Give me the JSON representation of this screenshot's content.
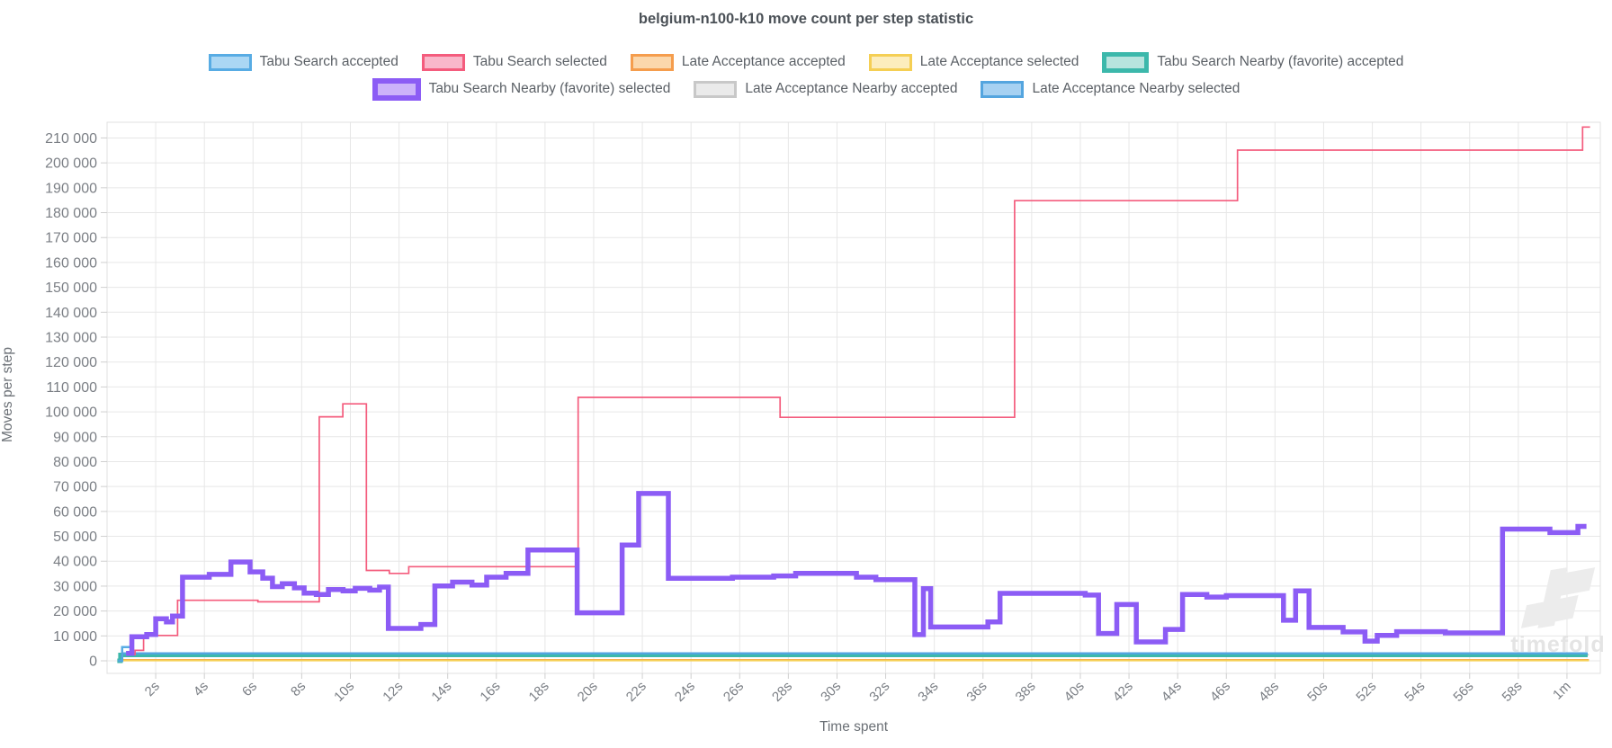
{
  "title": "belgium-n100-k10 move count per step statistic",
  "watermark_text": "timefold",
  "chart_data": {
    "type": "line",
    "stepped": true,
    "title": "belgium-n100-k10 move count per step statistic",
    "xlabel": "Time spent",
    "ylabel": "Moves per step",
    "grid": true,
    "legend_position": "top",
    "xlim": [
      0,
      61.37
    ],
    "ylim": [
      -5050,
      216300
    ],
    "x_ticks": [
      {
        "t": 2,
        "label": "2s"
      },
      {
        "t": 4,
        "label": "4s"
      },
      {
        "t": 6,
        "label": "6s"
      },
      {
        "t": 8,
        "label": "8s"
      },
      {
        "t": 10,
        "label": "10s"
      },
      {
        "t": 12,
        "label": "12s"
      },
      {
        "t": 14,
        "label": "14s"
      },
      {
        "t": 16,
        "label": "16s"
      },
      {
        "t": 18,
        "label": "18s"
      },
      {
        "t": 20,
        "label": "20s"
      },
      {
        "t": 22,
        "label": "22s"
      },
      {
        "t": 24,
        "label": "24s"
      },
      {
        "t": 26,
        "label": "26s"
      },
      {
        "t": 28,
        "label": "28s"
      },
      {
        "t": 30,
        "label": "30s"
      },
      {
        "t": 32,
        "label": "32s"
      },
      {
        "t": 34,
        "label": "34s"
      },
      {
        "t": 36,
        "label": "36s"
      },
      {
        "t": 38,
        "label": "38s"
      },
      {
        "t": 40,
        "label": "40s"
      },
      {
        "t": 42,
        "label": "42s"
      },
      {
        "t": 44,
        "label": "44s"
      },
      {
        "t": 46,
        "label": "46s"
      },
      {
        "t": 48,
        "label": "48s"
      },
      {
        "t": 50,
        "label": "50s"
      },
      {
        "t": 52,
        "label": "52s"
      },
      {
        "t": 54,
        "label": "54s"
      },
      {
        "t": 56,
        "label": "56s"
      },
      {
        "t": 58,
        "label": "58s"
      },
      {
        "t": 60,
        "label": "1m"
      }
    ],
    "y_ticks": [
      {
        "v": 0,
        "label": "0"
      },
      {
        "v": 10000,
        "label": "10 000"
      },
      {
        "v": 20000,
        "label": "20 000"
      },
      {
        "v": 30000,
        "label": "30 000"
      },
      {
        "v": 40000,
        "label": "40 000"
      },
      {
        "v": 50000,
        "label": "50 000"
      },
      {
        "v": 60000,
        "label": "60 000"
      },
      {
        "v": 70000,
        "label": "70 000"
      },
      {
        "v": 80000,
        "label": "80 000"
      },
      {
        "v": 90000,
        "label": "90 000"
      },
      {
        "v": 100000,
        "label": "100 000"
      },
      {
        "v": 110000,
        "label": "110 000"
      },
      {
        "v": 120000,
        "label": "120 000"
      },
      {
        "v": 130000,
        "label": "130 000"
      },
      {
        "v": 140000,
        "label": "140 000"
      },
      {
        "v": 150000,
        "label": "150 000"
      },
      {
        "v": 160000,
        "label": "160 000"
      },
      {
        "v": 170000,
        "label": "170 000"
      },
      {
        "v": 180000,
        "label": "180 000"
      },
      {
        "v": 190000,
        "label": "190 000"
      },
      {
        "v": 200000,
        "label": "200 000"
      },
      {
        "v": 210000,
        "label": "210 000"
      }
    ],
    "legend_rows": [
      [
        0,
        1,
        2,
        3,
        4
      ],
      [
        5,
        6,
        7
      ]
    ],
    "draw_order": [
      2,
      3,
      6,
      0,
      4,
      7,
      1,
      5
    ],
    "series": [
      {
        "name": "Tabu Search accepted",
        "color": "#58ace4",
        "fill": "#abd7f4",
        "lw": 2.5,
        "t_end": 60.85,
        "points": [
          [
            0.45,
            0
          ],
          [
            0.62,
            5500
          ],
          [
            1.05,
            2600
          ]
        ]
      },
      {
        "name": "Tabu Search selected",
        "color": "#f45c7d",
        "fill": "#f9b7ca",
        "lw": 1.7,
        "t_end": 60.95,
        "points": [
          [
            0.84,
            2500
          ],
          [
            1.15,
            4200
          ],
          [
            1.5,
            10200
          ],
          [
            2.9,
            24300
          ],
          [
            6.2,
            23700
          ],
          [
            8.72,
            98000
          ],
          [
            9.69,
            103200
          ],
          [
            10.66,
            36300
          ],
          [
            11.6,
            35100
          ],
          [
            12.4,
            37800
          ],
          [
            19.36,
            105800
          ],
          [
            27.66,
            97800
          ],
          [
            37.3,
            184800
          ],
          [
            46.46,
            205100
          ],
          [
            60.64,
            214400
          ]
        ]
      },
      {
        "name": "Late Acceptance accepted",
        "color": "#f59d4d",
        "fill": "#fbd7ab",
        "lw": 2,
        "t_end": 60.9,
        "points": [
          [
            0.45,
            0
          ],
          [
            0.6,
            350
          ]
        ]
      },
      {
        "name": "Late Acceptance selected",
        "color": "#f5cf54",
        "fill": "#fcedbd",
        "lw": 2,
        "t_end": 60.9,
        "points": [
          [
            0.45,
            0
          ],
          [
            0.6,
            150
          ]
        ]
      },
      {
        "name": "Tabu Search Nearby (favorite) accepted",
        "color": "#3cb8ab",
        "fill": "#b7e4de",
        "lw": 5,
        "t_end": 60.85,
        "points": [
          [
            0.42,
            0
          ],
          [
            0.55,
            2350
          ]
        ]
      },
      {
        "name": "Tabu Search Nearby (favorite) selected",
        "color": "#8c5cf5",
        "fill": "#ccb2fa",
        "lw": 5.5,
        "t_end": 60.8,
        "points": [
          [
            0.78,
            3000
          ],
          [
            1.02,
            9700
          ],
          [
            1.63,
            10600
          ],
          [
            2.0,
            16900
          ],
          [
            2.44,
            15600
          ],
          [
            2.69,
            18000
          ],
          [
            3.1,
            33600
          ],
          [
            4.2,
            34700
          ],
          [
            5.09,
            39700
          ],
          [
            5.88,
            35700
          ],
          [
            6.4,
            33200
          ],
          [
            6.8,
            29800
          ],
          [
            7.2,
            31000
          ],
          [
            7.7,
            29300
          ],
          [
            8.1,
            27200
          ],
          [
            8.6,
            26600
          ],
          [
            9.1,
            28600
          ],
          [
            9.7,
            28100
          ],
          [
            10.2,
            29100
          ],
          [
            10.8,
            28400
          ],
          [
            11.2,
            29600
          ],
          [
            11.56,
            13000
          ],
          [
            12.9,
            14600
          ],
          [
            13.47,
            30100
          ],
          [
            14.2,
            31600
          ],
          [
            15.0,
            30400
          ],
          [
            15.6,
            33600
          ],
          [
            16.4,
            35100
          ],
          [
            17.3,
            44500
          ],
          [
            19.32,
            19300
          ],
          [
            21.17,
            46500
          ],
          [
            21.85,
            67200
          ],
          [
            23.07,
            33100
          ],
          [
            25.7,
            33600
          ],
          [
            27.4,
            34100
          ],
          [
            28.3,
            35100
          ],
          [
            30.8,
            33600
          ],
          [
            31.6,
            32600
          ],
          [
            33.2,
            10500
          ],
          [
            33.55,
            29000
          ],
          [
            33.85,
            13600
          ],
          [
            36.2,
            15600
          ],
          [
            36.7,
            27100
          ],
          [
            40.2,
            26400
          ],
          [
            40.75,
            11000
          ],
          [
            41.5,
            22600
          ],
          [
            42.3,
            7600
          ],
          [
            43.5,
            12600
          ],
          [
            44.2,
            26600
          ],
          [
            45.2,
            25600
          ],
          [
            46.0,
            26200
          ],
          [
            48.35,
            16300
          ],
          [
            48.85,
            28100
          ],
          [
            49.4,
            13400
          ],
          [
            50.8,
            11600
          ],
          [
            51.7,
            7900
          ],
          [
            52.2,
            10200
          ],
          [
            53.0,
            11700
          ],
          [
            55.0,
            11200
          ],
          [
            57.35,
            52900
          ],
          [
            59.3,
            51500
          ],
          [
            60.45,
            54000
          ]
        ]
      },
      {
        "name": "Late Acceptance Nearby accepted",
        "color": "#c8c8c8",
        "fill": "#eaeaea",
        "lw": 2,
        "t_end": 60.9,
        "points": [
          [
            0.45,
            0
          ],
          [
            0.6,
            2450
          ]
        ]
      },
      {
        "name": "Late Acceptance Nearby selected",
        "color": "#54a5df",
        "fill": "#a6d1f2",
        "lw": 2.5,
        "t_end": 60.85,
        "points": [
          [
            0.45,
            0
          ],
          [
            0.62,
            3000
          ]
        ]
      }
    ]
  }
}
